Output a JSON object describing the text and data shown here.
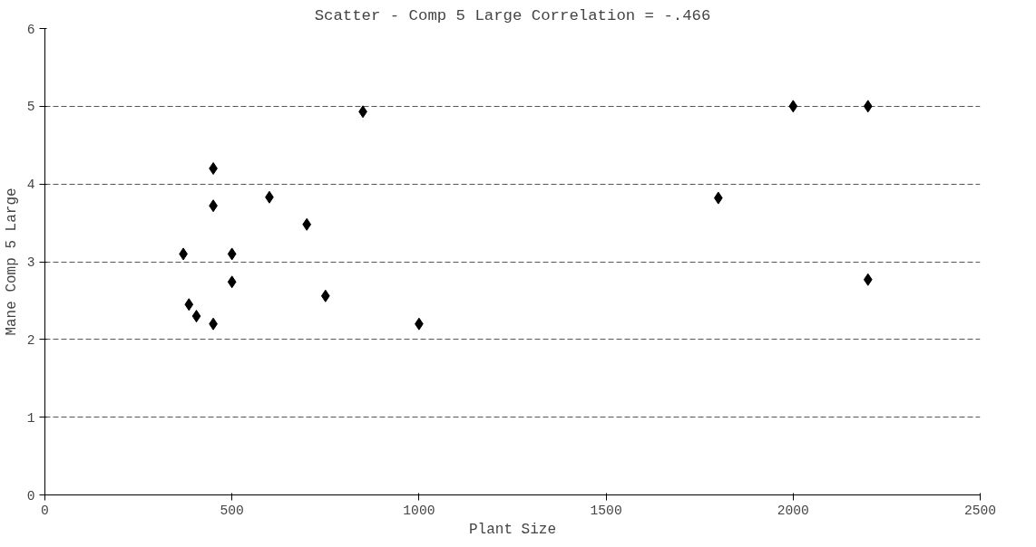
{
  "chart_data": {
    "type": "scatter",
    "title": "Scatter - Comp 5 Large Correlation = -.466",
    "xlabel": "Plant Size",
    "ylabel": "Mane Comp 5 Large",
    "x": [
      370,
      385,
      405,
      450,
      450,
      450,
      500,
      500,
      600,
      700,
      750,
      850,
      1000,
      1800,
      2000,
      2200,
      2200
    ],
    "series": [
      {
        "color": "#000000",
        "values": [
          3.1,
          2.45,
          2.3,
          4.2,
          3.72,
          2.2,
          3.1,
          2.74,
          3.83,
          3.48,
          2.56,
          4.93,
          2.2,
          3.82,
          5.0,
          5.0,
          2.77
        ]
      }
    ],
    "xlim": [
      0,
      2500
    ],
    "xticks": [
      0,
      500,
      1000,
      1500,
      2000,
      2500
    ],
    "ylim": [
      0,
      6
    ],
    "yticks": [
      0,
      1,
      2,
      3,
      4,
      5,
      6
    ],
    "grid": "y",
    "marker": "diamond"
  }
}
